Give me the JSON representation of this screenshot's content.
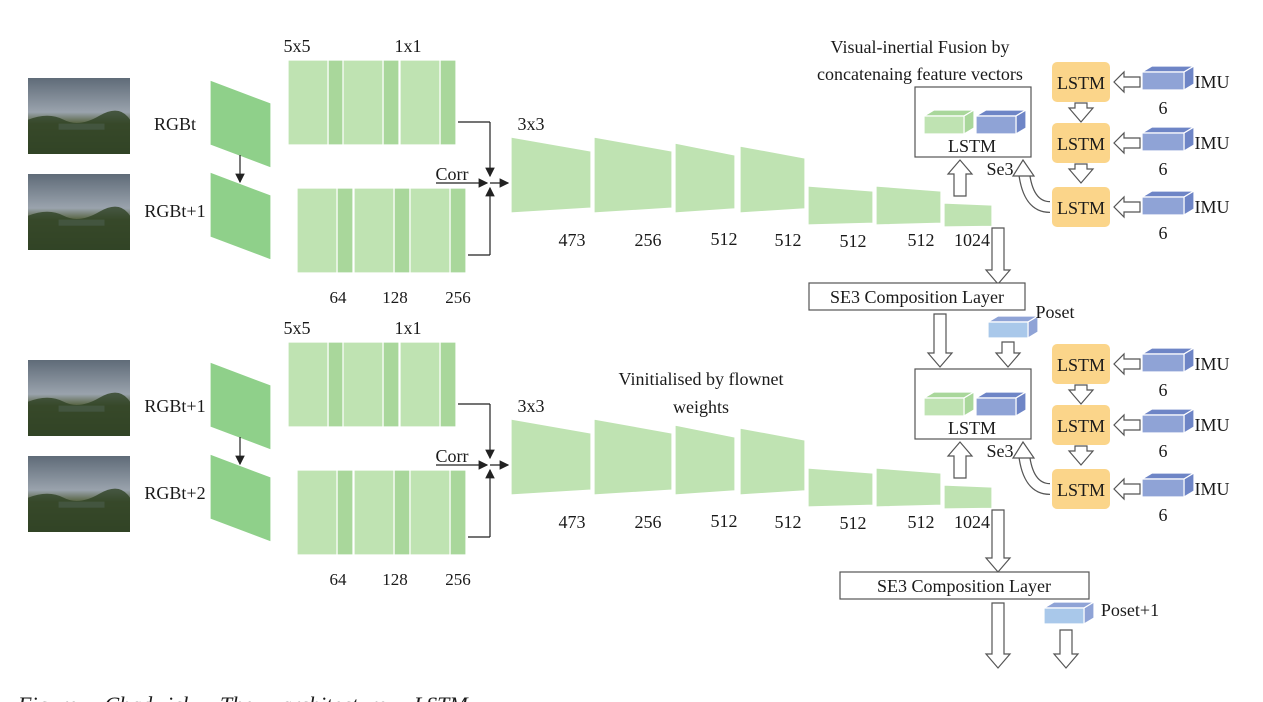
{
  "colors": {
    "green_face": "#bfe3b2",
    "green_side": "#a9d79b",
    "green_input": "#8fd08a",
    "blue_face": "#8fa3d6",
    "blue_side": "#6e85c6",
    "lightblue_face": "#a9c8ea",
    "lstm_fill": "#fbd58a",
    "arrow_fill": "#ffffff",
    "line": "#222222"
  },
  "top": {
    "input_labels": [
      "RGBt",
      "RGBt+1"
    ],
    "kernel_labels": [
      "5x5",
      "1x1"
    ],
    "encoder_channels": [
      "64",
      "128",
      "256"
    ],
    "corr_label": "Corr",
    "kernel3_label": "3x3",
    "decoder_channels": [
      "473",
      "256",
      "512",
      "512",
      "512",
      "512",
      "1024"
    ],
    "fusion_title_1": "Visual-inertial Fusion by",
    "fusion_title_2": "concatenaing feature vectors",
    "fusion_lstm": "LSTM",
    "se3_label": "Se3",
    "composition_label": "SE3 Composition Layer",
    "pose_label": "Poset",
    "imu_lstm": "LSTM",
    "imu_label": "IMU",
    "imu_dim": "6"
  },
  "bottom": {
    "input_labels": [
      "RGBt+1",
      "RGBt+2"
    ],
    "kernel_labels": [
      "5x5",
      "1x1"
    ],
    "encoder_channels": [
      "64",
      "128",
      "256"
    ],
    "corr_label": "Corr",
    "kernel3_label": "3x3",
    "init_note_1": "Vinitialised by flownet",
    "init_note_2": "weights",
    "decoder_channels": [
      "473",
      "256",
      "512",
      "512",
      "512",
      "512",
      "1024"
    ],
    "fusion_lstm": "LSTM",
    "se3_label": "Se3",
    "composition_label": "SE3 Composition Layer",
    "pose_label": "Poset+1",
    "imu_lstm": "LSTM",
    "imu_label": "IMU",
    "imu_dim": "6"
  },
  "caption_fragment": "Figure ... Chadwick ... The ... architecture ... LSTM ..."
}
